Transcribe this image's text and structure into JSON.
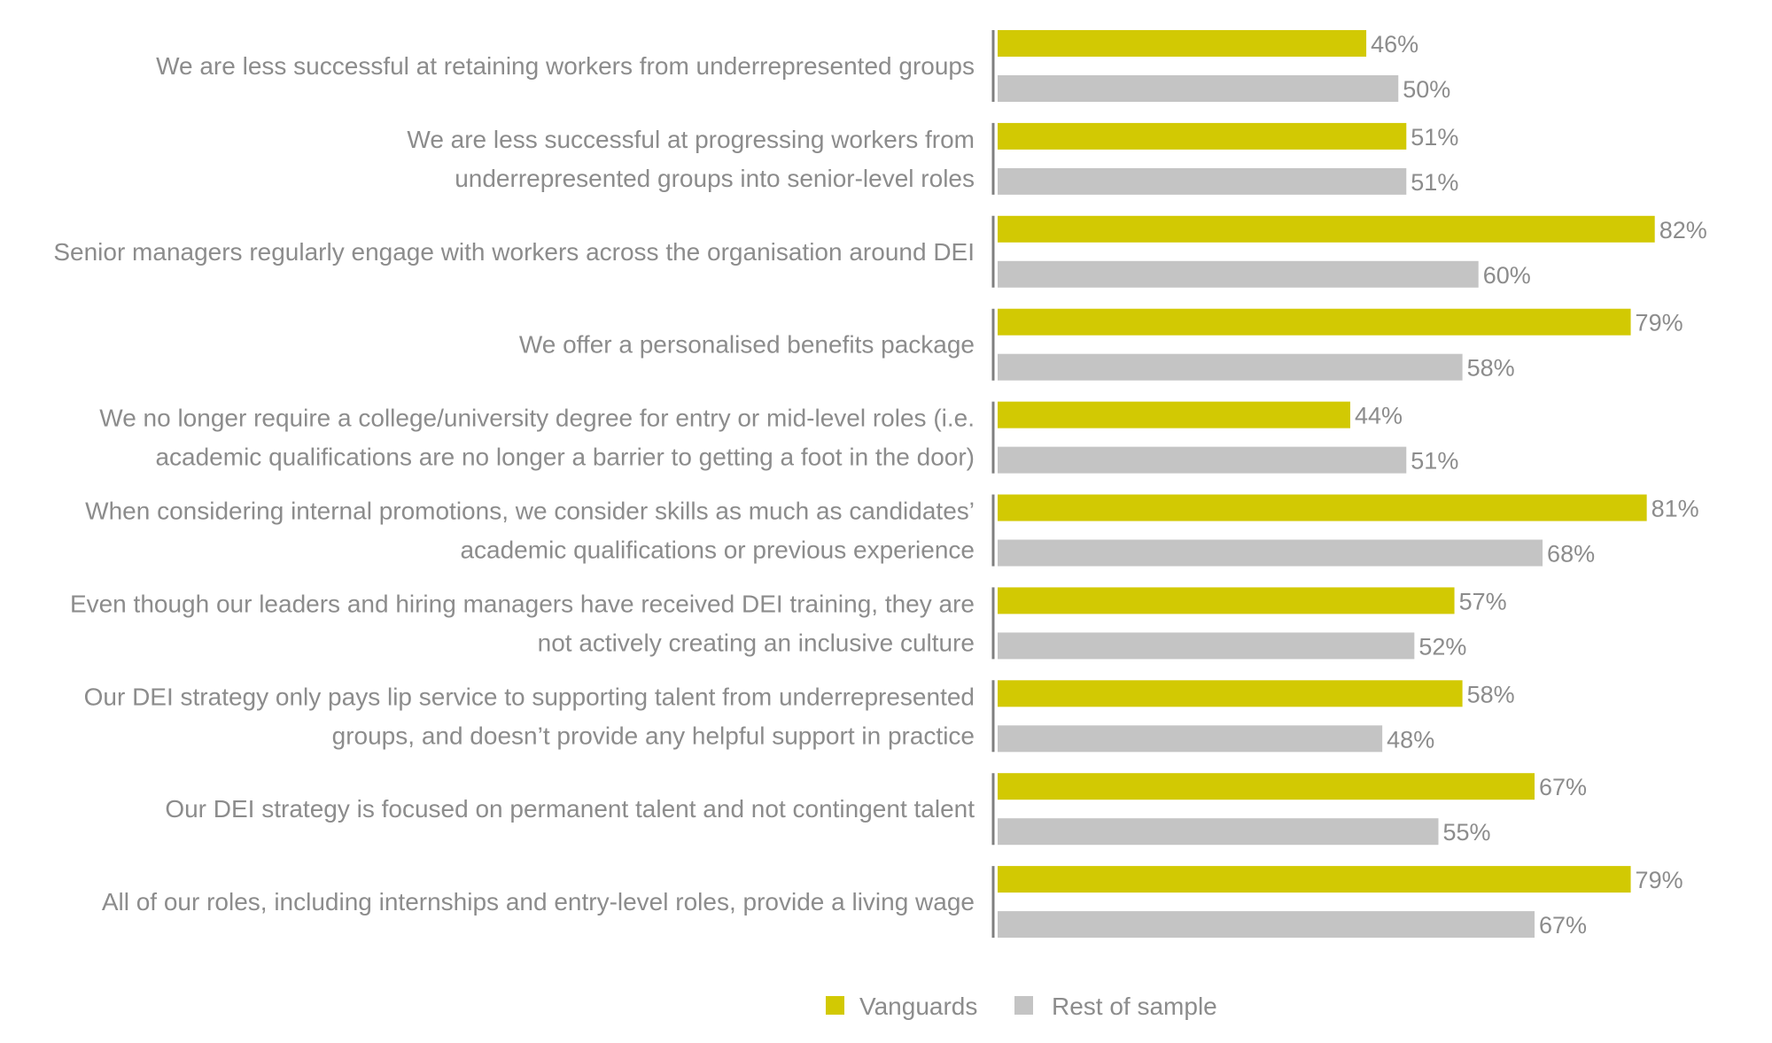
{
  "chart_data": {
    "type": "bar",
    "orientation": "horizontal",
    "categories": [
      "We are less successful at retaining workers from underrepresented groups",
      "We are less successful at progressing workers from underrepresented groups into senior-level roles",
      "Senior managers regularly engage with workers across the organisation around DEI",
      "We offer a personalised benefits package",
      "We no longer require a college/university degree for entry or mid-level roles (i.e. academic qualifications are no longer a barrier to getting a foot in the door)",
      "When considering internal promotions, we consider skills as much as candidates’ academic qualifications or previous experience",
      "Even though our leaders and hiring managers have received DEI training, they are not actively creating an inclusive culture",
      "Our DEI strategy only pays lip service to supporting talent from underrepresented groups, and doesn’t provide any helpful support in practice",
      "Our DEI strategy is focused on permanent talent and not contingent talent",
      "All of our roles, including internships and entry-level roles, provide a living wage"
    ],
    "category_lines": [
      [
        "We are less successful at retaining workers from underrepresented groups"
      ],
      [
        "We are less successful at progressing workers from",
        "underrepresented groups into senior-level roles"
      ],
      [
        "Senior managers regularly engage with workers across the organisation around DEI"
      ],
      [
        "We offer a personalised benefits package"
      ],
      [
        "We no longer require a college/university degree for entry or mid-level roles (i.e.",
        "academic qualifications are no longer a barrier to getting a foot in the door)"
      ],
      [
        "When considering internal promotions, we consider skills as much as candidates’",
        "academic qualifications or previous experience"
      ],
      [
        "Even though our leaders and hiring managers have received DEI training, they are",
        "not actively creating an inclusive culture"
      ],
      [
        "Our DEI strategy only pays lip service to supporting talent from underrepresented",
        "groups, and doesn’t provide any helpful support in practice"
      ],
      [
        "Our DEI strategy is focused on permanent talent and not contingent talent"
      ],
      [
        "All of our roles, including internships and entry-level roles, provide a living wage"
      ]
    ],
    "series": [
      {
        "name": "Vanguards",
        "color": "#d2c903",
        "values": [
          46,
          51,
          82,
          79,
          44,
          81,
          57,
          58,
          67,
          79
        ]
      },
      {
        "name": "Rest of sample",
        "color": "#c4c4c4",
        "values": [
          50,
          51,
          60,
          58,
          51,
          68,
          52,
          48,
          55,
          67
        ]
      }
    ],
    "value_suffix": "%",
    "xlim": [
      0,
      100
    ],
    "grid": false,
    "legend_position": "bottom-center",
    "axis_color": "#7f7f7f",
    "text_color": "#8c8c8c"
  }
}
